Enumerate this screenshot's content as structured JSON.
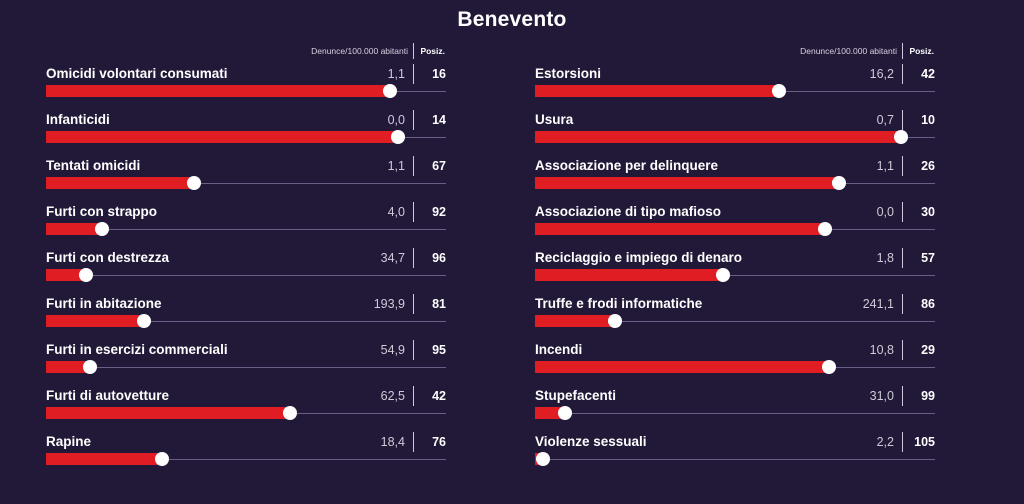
{
  "page": {
    "title": "Benevento"
  },
  "header": {
    "value_label": "Denunce/100.000 abitanti",
    "rank_label": "Posiz."
  },
  "colors": {
    "background": "#221838",
    "bar": "#e11d24",
    "track": "#6a5f86",
    "knob": "#ffffff"
  },
  "chart_data": {
    "type": "bar",
    "title": "Benevento",
    "value_label": "Denunce/100.000 abitanti",
    "rank_label": "Posiz.",
    "bar_fill_fraction_note": "bar fill is proportional to rank position (higher fill = better rank among provinces)",
    "left": [
      {
        "name": "Omicidi volontari consumati",
        "value": "1,1",
        "rank": "16",
        "fill": 0.86
      },
      {
        "name": "Infanticidi",
        "value": "0,0",
        "rank": "14",
        "fill": 0.88
      },
      {
        "name": "Tentati omicidi",
        "value": "1,1",
        "rank": "67",
        "fill": 0.37
      },
      {
        "name": "Furti con strappo",
        "value": "4,0",
        "rank": "92",
        "fill": 0.14
      },
      {
        "name": "Furti con destrezza",
        "value": "34,7",
        "rank": "96",
        "fill": 0.1
      },
      {
        "name": "Furti in abitazione",
        "value": "193,9",
        "rank": "81",
        "fill": 0.245
      },
      {
        "name": "Furti in esercizi commerciali",
        "value": "54,9",
        "rank": "95",
        "fill": 0.11
      },
      {
        "name": "Furti di autovetture",
        "value": "62,5",
        "rank": "42",
        "fill": 0.61
      },
      {
        "name": "Rapine",
        "value": "18,4",
        "rank": "76",
        "fill": 0.29
      }
    ],
    "right": [
      {
        "name": "Estorsioni",
        "value": "16,2",
        "rank": "42",
        "fill": 0.61
      },
      {
        "name": "Usura",
        "value": "0,7",
        "rank": "10",
        "fill": 0.915
      },
      {
        "name": "Associazione per delinquere",
        "value": "1,1",
        "rank": "26",
        "fill": 0.76
      },
      {
        "name": "Associazione di tipo mafioso",
        "value": "0,0",
        "rank": "30",
        "fill": 0.725
      },
      {
        "name": "Reciclaggio e impiego di denaro",
        "value": "1,8",
        "rank": "57",
        "fill": 0.47
      },
      {
        "name": "Truffe e frodi informatiche",
        "value": "241,1",
        "rank": "86",
        "fill": 0.2
      },
      {
        "name": "Incendi",
        "value": "10,8",
        "rank": "29",
        "fill": 0.735
      },
      {
        "name": "Stupefacenti",
        "value": "31,0",
        "rank": "99",
        "fill": 0.075
      },
      {
        "name": "Violenze sessuali",
        "value": "2,2",
        "rank": "105",
        "fill": 0.02
      }
    ]
  }
}
